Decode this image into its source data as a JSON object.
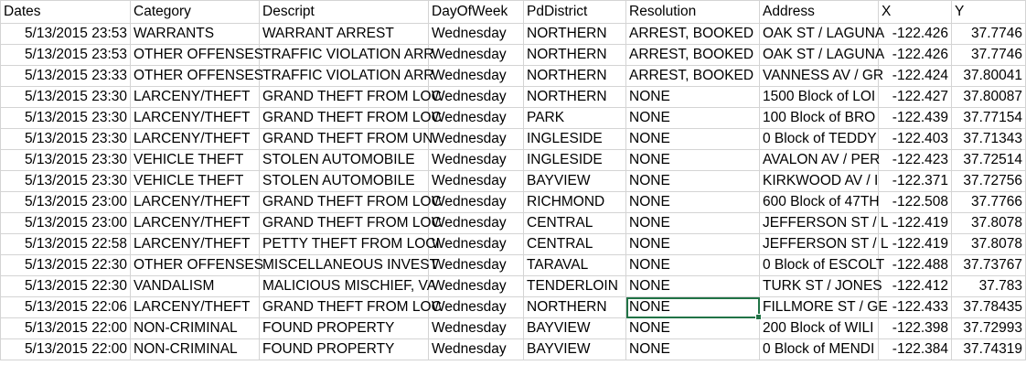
{
  "sheet": {
    "columns": [
      "Dates",
      "Category",
      "Descript",
      "DayOfWeek",
      "PdDistrict",
      "Resolution",
      "Address",
      "X",
      "Y"
    ],
    "rows": [
      [
        "5/13/2015 23:53",
        "WARRANTS",
        "WARRANT ARREST",
        "Wednesday",
        "NORTHERN",
        "ARREST, BOOKED",
        "OAK ST / LAGUNA",
        "-122.426",
        "37.7746"
      ],
      [
        "5/13/2015 23:53",
        "OTHER OFFENSES",
        "TRAFFIC VIOLATION ARR",
        "Wednesday",
        "NORTHERN",
        "ARREST, BOOKED",
        "OAK ST / LAGUNA",
        "-122.426",
        "37.7746"
      ],
      [
        "5/13/2015 23:33",
        "OTHER OFFENSES",
        "TRAFFIC VIOLATION ARR",
        "Wednesday",
        "NORTHERN",
        "ARREST, BOOKED",
        "VANNESS AV / GR",
        "-122.424",
        "37.80041"
      ],
      [
        "5/13/2015 23:30",
        "LARCENY/THEFT",
        "GRAND THEFT FROM LOC",
        "Wednesday",
        "NORTHERN",
        "NONE",
        "1500 Block of LOI",
        "-122.427",
        "37.80087"
      ],
      [
        "5/13/2015 23:30",
        "LARCENY/THEFT",
        "GRAND THEFT FROM LOC",
        "Wednesday",
        "PARK",
        "NONE",
        "100 Block of BRO",
        "-122.439",
        "37.77154"
      ],
      [
        "5/13/2015 23:30",
        "LARCENY/THEFT",
        "GRAND THEFT FROM UN",
        "Wednesday",
        "INGLESIDE",
        "NONE",
        "0 Block of TEDDY",
        "-122.403",
        "37.71343"
      ],
      [
        "5/13/2015 23:30",
        "VEHICLE THEFT",
        "STOLEN AUTOMOBILE",
        "Wednesday",
        "INGLESIDE",
        "NONE",
        "AVALON AV / PER",
        "-122.423",
        "37.72514"
      ],
      [
        "5/13/2015 23:30",
        "VEHICLE THEFT",
        "STOLEN AUTOMOBILE",
        "Wednesday",
        "BAYVIEW",
        "NONE",
        "KIRKWOOD AV / I",
        "-122.371",
        "37.72756"
      ],
      [
        "5/13/2015 23:00",
        "LARCENY/THEFT",
        "GRAND THEFT FROM LOC",
        "Wednesday",
        "RICHMOND",
        "NONE",
        "600 Block of 47TH",
        "-122.508",
        "37.7766"
      ],
      [
        "5/13/2015 23:00",
        "LARCENY/THEFT",
        "GRAND THEFT FROM LOC",
        "Wednesday",
        "CENTRAL",
        "NONE",
        "JEFFERSON ST / L",
        "-122.419",
        "37.8078"
      ],
      [
        "5/13/2015 22:58",
        "LARCENY/THEFT",
        "PETTY THEFT FROM LOCI",
        "Wednesday",
        "CENTRAL",
        "NONE",
        "JEFFERSON ST / L",
        "-122.419",
        "37.8078"
      ],
      [
        "5/13/2015 22:30",
        "OTHER OFFENSES",
        "MISCELLANEOUS INVEST",
        "Wednesday",
        "TARAVAL",
        "NONE",
        "0 Block of ESCOLT",
        "-122.488",
        "37.73767"
      ],
      [
        "5/13/2015 22:30",
        "VANDALISM",
        "MALICIOUS MISCHIEF, VA",
        "Wednesday",
        "TENDERLOIN",
        "NONE",
        "TURK ST / JONES",
        "-122.412",
        "37.783"
      ],
      [
        "5/13/2015 22:06",
        "LARCENY/THEFT",
        "GRAND THEFT FROM LOC",
        "Wednesday",
        "NORTHERN",
        "NONE",
        "FILLMORE ST / GE",
        "-122.433",
        "37.78435"
      ],
      [
        "5/13/2015 22:00",
        "NON-CRIMINAL",
        "FOUND PROPERTY",
        "Wednesday",
        "BAYVIEW",
        "NONE",
        "200 Block of WILI",
        "-122.398",
        "37.72993"
      ],
      [
        "5/13/2015 22:00",
        "NON-CRIMINAL",
        "FOUND PROPERTY",
        "Wednesday",
        "BAYVIEW",
        "NONE",
        "0 Block of MENDI",
        "-122.384",
        "37.74319"
      ]
    ],
    "selected_row": 13,
    "selected_col": 5,
    "accent_color": "#217346",
    "grid_color": "#d4d4d4"
  }
}
